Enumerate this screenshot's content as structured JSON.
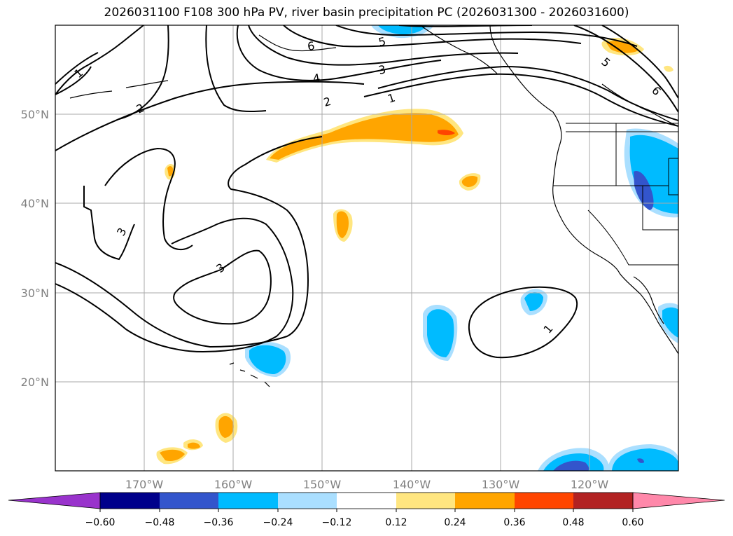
{
  "title": "2026031100 F108 300 hPa PV, river basin precipitation PC (2026031300 - 2026031600)",
  "map": {
    "lat_labels": [
      "50°N",
      "40°N",
      "30°N",
      "20°N"
    ],
    "lon_labels": [
      "170°W",
      "160°W",
      "150°W",
      "140°W",
      "130°W",
      "120°W"
    ],
    "contour_labels": [
      "1",
      "2",
      "3",
      "4",
      "5",
      "6",
      "3",
      "3",
      "2",
      "1",
      "1",
      "5",
      "6"
    ]
  },
  "colorbar": {
    "ticks": [
      "−0.60",
      "−0.48",
      "−0.36",
      "−0.24",
      "−0.12",
      "0.12",
      "0.24",
      "0.36",
      "0.48",
      "0.60"
    ],
    "colors": [
      "#9933cc",
      "#00008b",
      "#3355cc",
      "#00bbff",
      "#aadfff",
      "#ffffff",
      "#ffe680",
      "#ffa500",
      "#ff4500",
      "#b22222",
      "#ff88aa"
    ]
  },
  "colors": {
    "pos_light": "#ffe680",
    "pos_mid": "#ffa500",
    "pos_strong": "#ff4500",
    "neg_light": "#aadfff",
    "neg_mid": "#00bbff",
    "neg_strong": "#3355cc",
    "grid": "#a9a9a9"
  }
}
